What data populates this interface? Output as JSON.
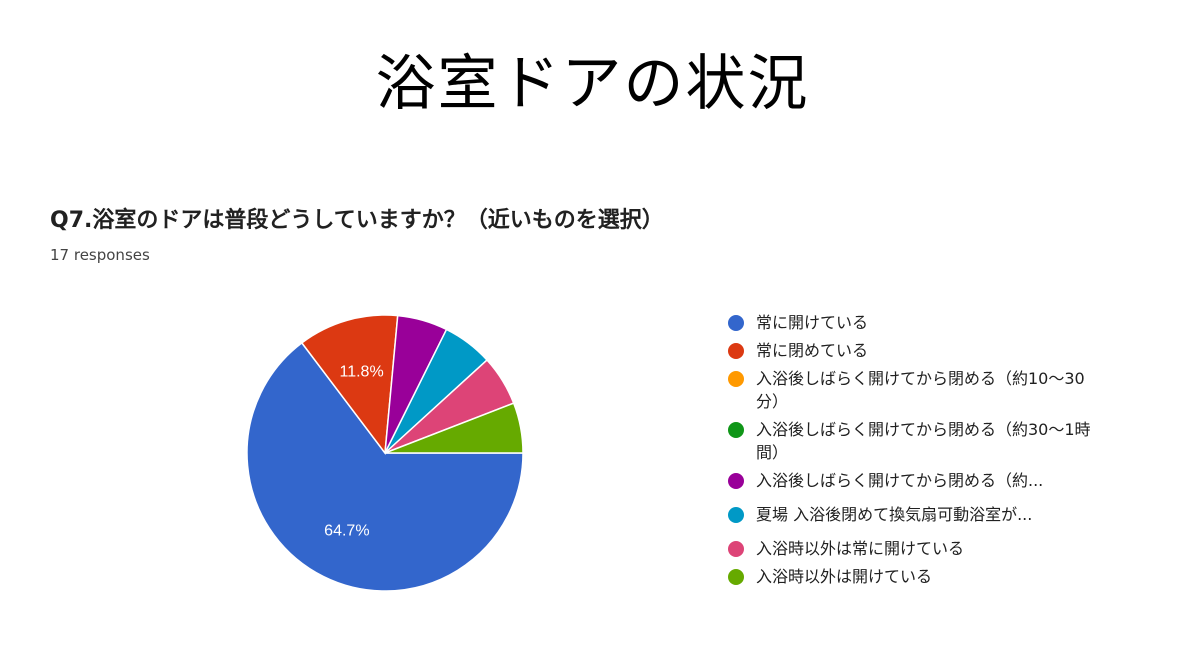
{
  "slide": {
    "title": "浴室ドアの状況"
  },
  "question": {
    "text": "Q7.浴室のドアは普段どうしていますか？（近いものを選択）",
    "responses": "17 responses"
  },
  "chart_data": {
    "type": "pie",
    "title": "Q7.浴室のドアは普段どうしていますか？（近いものを選択）",
    "legend_position": "right",
    "slices": [
      {
        "label": "常に開けている",
        "count": 11,
        "percent": 64.7,
        "color": "#3366cc",
        "data_label": "64.7%"
      },
      {
        "label": "常に閉めている",
        "count": 2,
        "percent": 11.8,
        "color": "#dc3912",
        "data_label": "11.8%"
      },
      {
        "label": "入浴後しばらく開けてから閉める（約10〜30分）",
        "count": 0,
        "percent": 0,
        "color": "#ff9900",
        "data_label": ""
      },
      {
        "label": "入浴後しばらく開けてから閉める（約30〜1時間）",
        "count": 0,
        "percent": 0,
        "color": "#109618",
        "data_label": ""
      },
      {
        "label": "入浴後しばらく開けてから閉める（約...",
        "count": 1,
        "percent": 5.9,
        "color": "#990099",
        "data_label": ""
      },
      {
        "label": "夏場 入浴後閉めて換気扇可動浴室が...",
        "count": 1,
        "percent": 5.9,
        "color": "#0099c6",
        "data_label": ""
      },
      {
        "label": "入浴時以外は常に開けている",
        "count": 1,
        "percent": 5.9,
        "color": "#dd4477",
        "data_label": ""
      },
      {
        "label": "入浴時以外は開けている",
        "count": 1,
        "percent": 5.9,
        "color": "#66aa00",
        "data_label": ""
      }
    ]
  },
  "legend": {
    "items": [
      {
        "label": "常に開けている",
        "color": "#3366cc"
      },
      {
        "label": "常に閉めている",
        "color": "#dc3912"
      },
      {
        "label": "入浴後しばらく開けてから閉める（約10〜30分）",
        "color": "#ff9900"
      },
      {
        "label": "入浴後しばらく開けてから閉める（約30〜1時間）",
        "color": "#109618"
      },
      {
        "label": "入浴後しばらく開けてから閉める（約...",
        "color": "#990099"
      },
      {
        "label": "夏場 入浴後閉めて換気扇可動浴室が...",
        "color": "#0099c6"
      },
      {
        "label": "入浴時以外は常に開けている",
        "color": "#dd4477"
      },
      {
        "label": "入浴時以外は開けている",
        "color": "#66aa00"
      }
    ]
  }
}
